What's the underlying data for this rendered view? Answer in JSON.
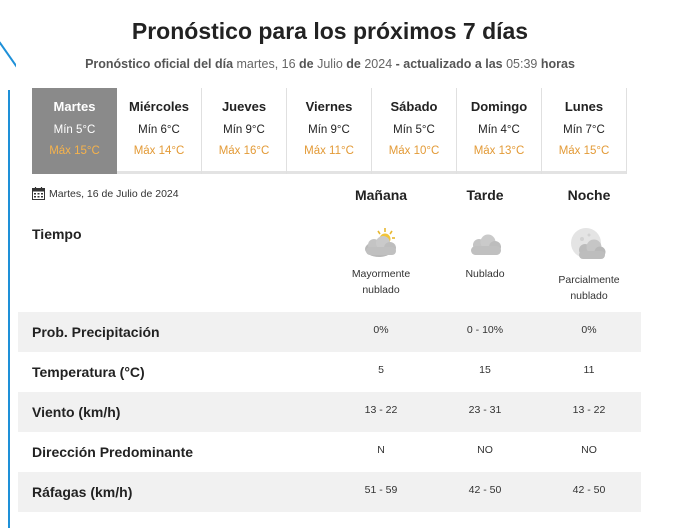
{
  "header": {
    "title": "Pronóstico para los próximos 7 días",
    "subtitle": {
      "part1": "Pronóstico oficial del día",
      "part2": " martes, 16 ",
      "part3": "de",
      "part4": " Julio ",
      "part5": "de",
      "part6": " 2024 ",
      "part7": "- actualizado a las",
      "part8": " 05:39 ",
      "part9": "horas"
    }
  },
  "days": [
    {
      "name": "Martes",
      "min": "Mín 5°C",
      "max": "Máx 15°C",
      "active": true
    },
    {
      "name": "Miércoles",
      "min": "Mín 6°C",
      "max": "Máx 14°C"
    },
    {
      "name": "Jueves",
      "min": "Mín 9°C",
      "max": "Máx 16°C"
    },
    {
      "name": "Viernes",
      "min": "Mín 9°C",
      "max": "Máx 11°C"
    },
    {
      "name": "Sábado",
      "min": "Mín 5°C",
      "max": "Máx 10°C"
    },
    {
      "name": "Domingo",
      "min": "Mín 4°C",
      "max": "Máx 13°C"
    },
    {
      "name": "Lunes",
      "min": "Mín 7°C",
      "max": "Máx 15°C"
    }
  ],
  "detail": {
    "date": "Martes, 16 de Julio de 2024",
    "calendar_icon": "calendar-icon",
    "columns": [
      "Mañana",
      "Tarde",
      "Noche"
    ],
    "tiempo_label": "Tiempo",
    "weather": [
      {
        "icon": "sun-behind-cloud-icon",
        "desc_line1": "Mayormente",
        "desc_line2": "nublado"
      },
      {
        "icon": "cloud-icon",
        "desc_line1": "Nublado",
        "desc_line2": ""
      },
      {
        "icon": "moon-behind-cloud-icon",
        "desc_line1": "Parcialmente",
        "desc_line2": "nublado"
      }
    ],
    "rows": [
      {
        "label": "Prob. Precipitación",
        "values": [
          "0%",
          "0 - 10%",
          "0%"
        ]
      },
      {
        "label": "Temperatura (°C)",
        "values": [
          "5",
          "15",
          "11"
        ]
      },
      {
        "label": "Viento (km/h)",
        "values": [
          "13 - 22",
          "23 - 31",
          "13 - 22"
        ]
      },
      {
        "label": "Dirección Predominante",
        "values": [
          "N",
          "NO",
          "NO"
        ]
      },
      {
        "label": "Ráfagas (km/h)",
        "values": [
          "51 - 59",
          "42 - 50",
          "42 - 50"
        ]
      }
    ]
  },
  "colors": {
    "active_day_bg": "#8a8a8a",
    "max_temp": "#e39a36",
    "row_shade": "#f1f1f1"
  }
}
